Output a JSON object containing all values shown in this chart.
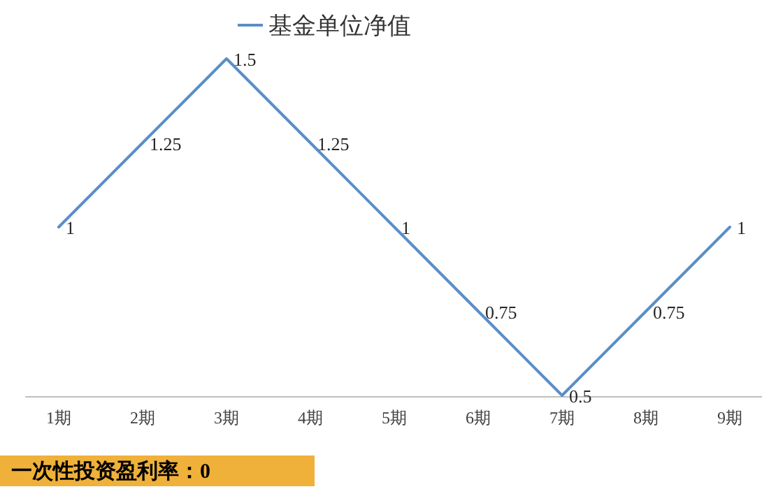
{
  "chart_data": {
    "type": "line",
    "categories": [
      "1期",
      "2期",
      "3期",
      "4期",
      "5期",
      "6期",
      "7期",
      "8期",
      "9期"
    ],
    "series": [
      {
        "name": "基金单位净值",
        "color": "#5b8ec6",
        "values": [
          1,
          1.25,
          1.5,
          1.25,
          1,
          0.75,
          0.5,
          0.75,
          1
        ]
      }
    ],
    "data_labels": true,
    "legend": "top",
    "marker": "none",
    "line_style": "solid",
    "annotations": [
      "一次性投资盈利率：0"
    ]
  }
}
